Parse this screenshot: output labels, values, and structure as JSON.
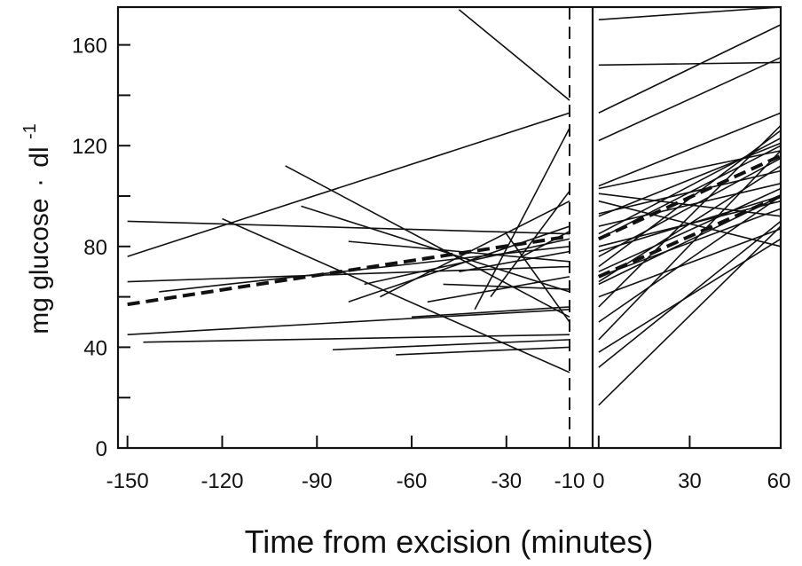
{
  "chart_data": {
    "type": "line",
    "xlabel": "Time from excision (minutes)",
    "ylabel_main": "mg glucose",
    "ylabel_dot": "·",
    "ylabel_unit": "dl",
    "ylabel_exp": "-1",
    "ylim": [
      0,
      175
    ],
    "yticks": [
      0,
      40,
      80,
      120,
      160
    ],
    "yticks_minor": [
      20,
      60,
      100,
      140
    ],
    "panels": [
      {
        "xlim": [
          -153,
          -10
        ],
        "xticks": [
          -150,
          -120,
          -90,
          -60,
          -30
        ],
        "xtick_labels": [
          "-150",
          "-120",
          "-90",
          "-60",
          "-30"
        ]
      },
      {
        "xlim": [
          -2,
          60
        ],
        "xticks": [
          0,
          30,
          60
        ],
        "xtick_labels": [
          "0",
          "30",
          "60"
        ]
      }
    ],
    "break_label": "-10",
    "pre_lines": [
      [
        [
          -150,
          45
        ],
        [
          -10,
          55
        ]
      ],
      [
        [
          -145,
          42
        ],
        [
          -10,
          45
        ]
      ],
      [
        [
          -150,
          66
        ],
        [
          -10,
          72
        ]
      ],
      [
        [
          -150,
          76
        ],
        [
          -10,
          133
        ]
      ],
      [
        [
          -150,
          90
        ],
        [
          -10,
          85
        ]
      ],
      [
        [
          -120,
          91
        ],
        [
          -10,
          30
        ]
      ],
      [
        [
          -100,
          112
        ],
        [
          -10,
          52
        ]
      ],
      [
        [
          -95,
          96
        ],
        [
          -10,
          62
        ]
      ],
      [
        [
          -85,
          39
        ],
        [
          -10,
          43
        ]
      ],
      [
        [
          -80,
          58
        ],
        [
          -10,
          88
        ]
      ],
      [
        [
          -75,
          65
        ],
        [
          -10,
          83
        ]
      ],
      [
        [
          -70,
          60
        ],
        [
          -10,
          98
        ]
      ],
      [
        [
          -65,
          37
        ],
        [
          -10,
          40
        ]
      ],
      [
        [
          -60,
          52
        ],
        [
          -10,
          56
        ]
      ],
      [
        [
          -55,
          58
        ],
        [
          -10,
          68
        ]
      ],
      [
        [
          -50,
          65
        ],
        [
          -10,
          63
        ]
      ],
      [
        [
          -45,
          70
        ],
        [
          -10,
          78
        ]
      ],
      [
        [
          -40,
          55
        ],
        [
          -10,
          127
        ]
      ],
      [
        [
          -35,
          60
        ],
        [
          -10,
          102
        ]
      ],
      [
        [
          -30,
          85
        ],
        [
          -10,
          50
        ]
      ],
      [
        [
          -25,
          76
        ],
        [
          -10,
          86
        ]
      ],
      [
        [
          -45,
          174
        ],
        [
          -10,
          138
        ]
      ],
      [
        [
          -80,
          82
        ],
        [
          -10,
          74
        ]
      ],
      [
        [
          -140,
          62
        ],
        [
          -10,
          80
        ]
      ]
    ],
    "post_lines": [
      [
        [
          0,
          170
        ],
        [
          60,
          175
        ]
      ],
      [
        [
          0,
          152
        ],
        [
          60,
          153
        ]
      ],
      [
        [
          0,
          133
        ],
        [
          60,
          168
        ]
      ],
      [
        [
          0,
          122
        ],
        [
          60,
          155
        ]
      ],
      [
        [
          0,
          104
        ],
        [
          60,
          133
        ]
      ],
      [
        [
          0,
          103
        ],
        [
          60,
          118
        ]
      ],
      [
        [
          0,
          101
        ],
        [
          60,
          92
        ]
      ],
      [
        [
          0,
          93
        ],
        [
          60,
          110
        ]
      ],
      [
        [
          0,
          92
        ],
        [
          60,
          121
        ]
      ],
      [
        [
          0,
          88
        ],
        [
          60,
          105
        ]
      ],
      [
        [
          0,
          83
        ],
        [
          60,
          120
        ]
      ],
      [
        [
          0,
          80
        ],
        [
          60,
          98
        ]
      ],
      [
        [
          0,
          78
        ],
        [
          60,
          100
        ]
      ],
      [
        [
          0,
          76
        ],
        [
          60,
          115
        ]
      ],
      [
        [
          0,
          72
        ],
        [
          60,
          126
        ]
      ],
      [
        [
          0,
          70
        ],
        [
          60,
          103
        ]
      ],
      [
        [
          0,
          68
        ],
        [
          60,
          95
        ]
      ],
      [
        [
          0,
          66
        ],
        [
          60,
          112
        ]
      ],
      [
        [
          0,
          65
        ],
        [
          60,
          100
        ]
      ],
      [
        [
          0,
          60
        ],
        [
          60,
          87
        ]
      ],
      [
        [
          0,
          56
        ],
        [
          60,
          128
        ]
      ],
      [
        [
          0,
          50
        ],
        [
          60,
          100
        ]
      ],
      [
        [
          0,
          43
        ],
        [
          60,
          118
        ]
      ],
      [
        [
          0,
          38
        ],
        [
          60,
          83
        ]
      ],
      [
        [
          0,
          32
        ],
        [
          60,
          90
        ]
      ],
      [
        [
          0,
          17
        ],
        [
          60,
          88
        ]
      ],
      [
        [
          0,
          98
        ],
        [
          60,
          80
        ]
      ],
      [
        [
          0,
          85
        ],
        [
          60,
          123
        ]
      ]
    ],
    "mean_pre": [
      [
        -150,
        57
      ],
      [
        -10,
        84
      ]
    ],
    "mean_post_a": [
      [
        0,
        83
      ],
      [
        60,
        116
      ]
    ],
    "mean_post_b": [
      [
        0,
        68
      ],
      [
        60,
        100
      ]
    ]
  }
}
